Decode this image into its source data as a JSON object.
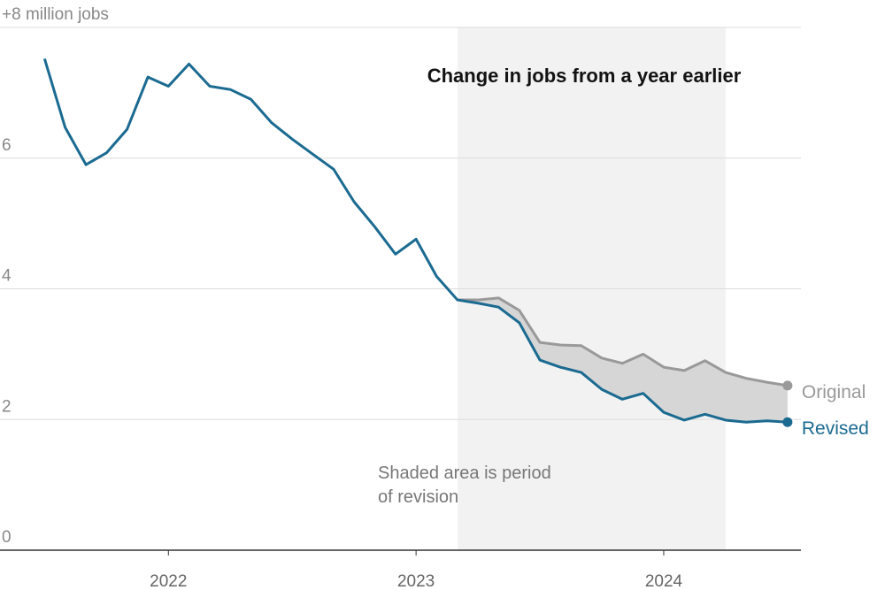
{
  "chart_data": {
    "type": "line",
    "title": "Change in jobs from a year earlier",
    "annotation": [
      "Shaded area is period",
      "of revision"
    ],
    "x": [
      2021.5,
      2021.583,
      2021.667,
      2021.75,
      2021.833,
      2021.917,
      2022.0,
      2022.083,
      2022.167,
      2022.25,
      2022.333,
      2022.417,
      2022.5,
      2022.583,
      2022.667,
      2022.75,
      2022.833,
      2022.917,
      2023.0,
      2023.083,
      2023.167,
      2023.25,
      2023.333,
      2023.417,
      2023.5,
      2023.583,
      2023.667,
      2023.75,
      2023.833,
      2023.917,
      2024.0,
      2024.083,
      2024.167,
      2024.25,
      2024.333,
      2024.417,
      2024.5
    ],
    "series": [
      {
        "name": "Original",
        "color": "#999999",
        "values": [
          null,
          null,
          null,
          null,
          null,
          null,
          null,
          null,
          null,
          null,
          null,
          null,
          null,
          null,
          null,
          null,
          null,
          null,
          null,
          null,
          3.83,
          3.83,
          3.86,
          3.67,
          3.18,
          3.14,
          3.13,
          2.94,
          2.86,
          3.0,
          2.8,
          2.75,
          2.9,
          2.72,
          2.63,
          2.57,
          2.52
        ]
      },
      {
        "name": "Revised",
        "color": "#1b6a91",
        "values": [
          7.52,
          6.47,
          5.9,
          6.08,
          6.44,
          7.24,
          7.1,
          7.44,
          7.1,
          7.05,
          6.9,
          6.54,
          6.29,
          6.06,
          5.83,
          5.33,
          4.95,
          4.53,
          4.76,
          4.19,
          3.83,
          3.78,
          3.72,
          3.48,
          2.91,
          2.8,
          2.72,
          2.46,
          2.31,
          2.4,
          2.11,
          1.99,
          2.08,
          1.99,
          1.96,
          1.98,
          1.96
        ]
      }
    ],
    "shaded_period": [
      2023.168,
      2024.25
    ],
    "xlim": [
      2021.32,
      2024.554
    ],
    "xticks": [
      2022,
      2023,
      2024
    ],
    "ylim": [
      0,
      8
    ],
    "yticks": [
      0,
      2,
      4,
      6,
      {
        "value": 8,
        "label": "+8 million jobs"
      }
    ],
    "grid": true
  }
}
